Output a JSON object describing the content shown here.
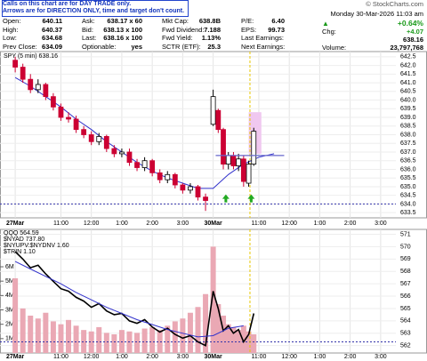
{
  "banner": [
    "Calls on this chart are for DAY TRADE only.",
    "Arrows are for DIRECTION ONLY, time and target don't count."
  ],
  "copyright": "© StockCharts.com",
  "quote": {
    "rows": [
      [
        "Open:",
        "640.11",
        "Ask:",
        "638.17 x 60",
        "Mkt Cap:",
        "638.8B",
        "P/E:",
        "6.40"
      ],
      [
        "High:",
        "640.37",
        "Bid:",
        "638.13 x 100",
        "Fwd Dividend:",
        "7.188",
        "EPS:",
        "99.73"
      ],
      [
        "Low:",
        "634.68",
        "Last:",
        "638.16 x 100",
        "Fwd Yield:",
        "1.13%",
        "Last Earnings:"
      ],
      [
        "Prev Close:",
        "634.09",
        "Optionable:",
        "yes",
        "SCTR (ETF):",
        "25.3",
        "Next Earnings:"
      ]
    ],
    "date": "Monday  30-Mar-2026  11:03 am",
    "change_pct": "+0.64%",
    "chg_label": "Chg:",
    "chg": "+4.07",
    "last": "638.16",
    "volume_label": "Volume:",
    "volume": "23,797,768"
  },
  "chart_data": [
    {
      "type": "candlestick",
      "label": "SPY (5 min) 638.16",
      "up_color": "#000000",
      "down_color": "#cc0033",
      "xlim": [
        -6,
        150
      ],
      "xticks": [
        {
          "value": 0,
          "label": "27Mar"
        },
        {
          "value": 18,
          "label": "11:00"
        },
        {
          "value": 30,
          "label": "12:00"
        },
        {
          "value": 42,
          "label": "1:00"
        },
        {
          "value": 54,
          "label": "2:00"
        },
        {
          "value": 66,
          "label": "3:00"
        },
        {
          "value": 78,
          "label": "30Mar"
        },
        {
          "value": 96,
          "label": "11:00"
        },
        {
          "value": 108,
          "label": "12:00"
        },
        {
          "value": 120,
          "label": "1:00"
        },
        {
          "value": 132,
          "label": "2:00"
        },
        {
          "value": 144,
          "label": "3:00"
        }
      ],
      "ylim": [
        633.2,
        642.8
      ],
      "yticks": [
        633.5,
        {
          "value": 634,
          "label": "634.0"
        },
        634.5,
        {
          "value": 635,
          "label": "635.0"
        },
        635.5,
        {
          "value": 636,
          "label": "636.0"
        },
        636.5,
        {
          "value": 637,
          "label": "637.0"
        },
        637.5,
        {
          "value": 638,
          "label": "638.0"
        },
        638.5,
        {
          "value": 639,
          "label": "639.0"
        },
        639.5,
        {
          "value": 640,
          "label": "640.0"
        },
        640.5,
        {
          "value": 641,
          "label": "641.0"
        },
        641.5,
        {
          "value": 642,
          "label": "642.0"
        },
        642.5
      ],
      "x": [
        0,
        3,
        6,
        9,
        12,
        15,
        18,
        21,
        24,
        27,
        30,
        33,
        36,
        39,
        42,
        45,
        48,
        51,
        54,
        57,
        60,
        63,
        66,
        69,
        72,
        75,
        78,
        80,
        82,
        84,
        86,
        88,
        90,
        92,
        94
      ],
      "open": [
        642.3,
        641.9,
        641.2,
        640.6,
        640.9,
        640.2,
        639.6,
        639.0,
        638.9,
        638.3,
        638.0,
        637.6,
        637.9,
        637.2,
        636.9,
        637.0,
        636.4,
        636.1,
        636.5,
        635.8,
        635.4,
        635.7,
        635.1,
        634.8,
        635.0,
        634.4,
        638.6,
        639.4,
        638.3,
        636.3,
        636.8,
        636.2,
        636.6,
        635.2,
        636.3
      ],
      "high": [
        642.5,
        642.1,
        641.5,
        641.2,
        641.0,
        640.4,
        639.8,
        639.3,
        639.1,
        638.5,
        638.2,
        638.1,
        638.0,
        637.4,
        637.2,
        637.2,
        636.6,
        636.7,
        636.6,
        636.0,
        635.9,
        635.8,
        635.2,
        635.2,
        635.1,
        634.6,
        640.6,
        639.5,
        638.4,
        637.0,
        637.0,
        636.9,
        636.8,
        636.5,
        638.4
      ],
      "low": [
        641.6,
        641.0,
        640.4,
        640.4,
        640.0,
        639.4,
        638.8,
        638.7,
        638.1,
        637.8,
        637.4,
        637.4,
        637.0,
        636.7,
        636.7,
        636.2,
        635.9,
        635.9,
        635.6,
        635.2,
        635.2,
        634.9,
        634.6,
        634.6,
        634.2,
        633.6,
        638.5,
        638.1,
        636.0,
        636.0,
        636.0,
        635.9,
        635.0,
        635.0,
        636.2
      ],
      "close": [
        641.9,
        641.2,
        640.6,
        640.9,
        640.2,
        639.6,
        639.0,
        638.9,
        638.3,
        638.0,
        637.6,
        637.9,
        637.2,
        636.9,
        637.0,
        636.4,
        636.1,
        636.5,
        635.8,
        635.4,
        635.7,
        635.1,
        634.8,
        635.0,
        634.4,
        634.2,
        640.2,
        638.3,
        636.3,
        636.8,
        636.2,
        636.6,
        635.3,
        636.3,
        638.2
      ],
      "moving_average": {
        "color": "#3333cc",
        "x": [
          0,
          6,
          12,
          18,
          24,
          30,
          36,
          42,
          48,
          54,
          60,
          66,
          72,
          78,
          84,
          90,
          96,
          102
        ],
        "values": [
          641.3,
          640.8,
          640.2,
          639.6,
          638.9,
          638.3,
          637.6,
          637.0,
          636.4,
          635.9,
          635.5,
          635.2,
          634.9,
          634.9,
          635.7,
          636.3,
          636.7,
          636.9
        ]
      },
      "support_level": 634.0,
      "target": {
        "value": 636.8,
        "x": [
          79,
          106
        ],
        "color": "#6666cc"
      },
      "signals": {
        "x": [
          83,
          93
        ],
        "values": [
          634.3,
          634.3
        ],
        "color": "#22aa22"
      },
      "highlight": {
        "x": [
          92,
          97
        ],
        "ylim": [
          636.9,
          639.3
        ],
        "color": "#f0c8f0"
      },
      "marker_x": 92.5
    },
    {
      "type": "line",
      "legend": [
        "QQQ 564.59",
        "$NYAD 737.80",
        "$NYUPV:$NYDNV 1.60",
        "$TRIN 1.10"
      ],
      "xlim": [
        -6,
        150
      ],
      "xticks": [
        {
          "value": 0,
          "label": "27Mar"
        },
        {
          "value": 18,
          "label": "11:00"
        },
        {
          "value": 30,
          "label": "12:00"
        },
        {
          "value": 42,
          "label": "1:00"
        },
        {
          "value": 54,
          "label": "2:00"
        },
        {
          "value": 66,
          "label": "3:00"
        },
        {
          "value": 78,
          "label": "30Mar"
        },
        {
          "value": 96,
          "label": "11:00"
        },
        {
          "value": 108,
          "label": "12:00"
        },
        {
          "value": 120,
          "label": "1:00"
        },
        {
          "value": 132,
          "label": "2:00"
        },
        {
          "value": 144,
          "label": "3:00"
        }
      ],
      "ylim": [
        561.4,
        571.4
      ],
      "yticks": [
        562,
        563,
        564,
        565,
        566,
        567,
        568,
        569,
        570,
        571
      ],
      "y2lim": [
        0,
        8600000
      ],
      "y2ticks": [
        {
          "value": 1000000,
          "label": "1M"
        },
        {
          "value": 2000000,
          "label": "2M"
        },
        {
          "value": 3000000,
          "label": "3M"
        },
        {
          "value": 4000000,
          "label": "4M"
        },
        {
          "value": 5000000,
          "label": "5M"
        },
        {
          "value": 6000000,
          "label": "6M"
        }
      ],
      "series": [
        {
          "name": "QQQ 564.59",
          "color": "#000000",
          "x": [
            0,
            3,
            6,
            9,
            12,
            15,
            18,
            21,
            24,
            27,
            30,
            33,
            36,
            39,
            42,
            45,
            48,
            51,
            54,
            57,
            60,
            63,
            66,
            69,
            72,
            75,
            78,
            80,
            82,
            84,
            86,
            88,
            90,
            92,
            94
          ],
          "values": [
            569.6,
            569.0,
            568.3,
            568.5,
            567.8,
            567.2,
            566.6,
            566.4,
            565.9,
            565.6,
            565.1,
            565.4,
            564.8,
            564.5,
            564.6,
            564.0,
            563.8,
            564.1,
            563.5,
            563.1,
            563.4,
            562.9,
            562.6,
            562.8,
            562.3,
            562.0,
            566.4,
            565.0,
            563.2,
            563.6,
            563.0,
            563.3,
            562.3,
            562.9,
            564.6
          ]
        },
        {
          "color": "#3333cc",
          "x": [
            0,
            6,
            12,
            18,
            24,
            30,
            36,
            42,
            48,
            54,
            60,
            66,
            72,
            78,
            84,
            90
          ],
          "values": [
            568.8,
            568.2,
            567.6,
            567.0,
            566.3,
            565.7,
            565.1,
            564.6,
            564.1,
            563.7,
            563.3,
            563.0,
            562.7,
            562.8,
            563.4,
            563.6
          ]
        }
      ],
      "volume": {
        "axis": "y2",
        "color": "#eaa8b4",
        "x": [
          0,
          3,
          6,
          9,
          12,
          15,
          18,
          21,
          24,
          27,
          30,
          33,
          36,
          39,
          42,
          45,
          48,
          51,
          54,
          57,
          60,
          63,
          66,
          69,
          72,
          75,
          78,
          80,
          82,
          84,
          86,
          88,
          90,
          92,
          94
        ],
        "values": [
          5200000,
          3100000,
          2600000,
          2400000,
          2800000,
          2200000,
          2000000,
          2300000,
          1900000,
          1600000,
          1500000,
          1800000,
          1400000,
          1300000,
          1600000,
          1500000,
          1400000,
          1700000,
          1800000,
          1600000,
          1900000,
          2200000,
          2400000,
          2800000,
          3200000,
          4100000,
          7400000,
          3400000,
          2600000,
          2000000,
          1800000,
          1600000,
          1900000,
          1500000,
          1300000
        ]
      },
      "support_level": 562.3,
      "marker_x": 92.5
    }
  ]
}
